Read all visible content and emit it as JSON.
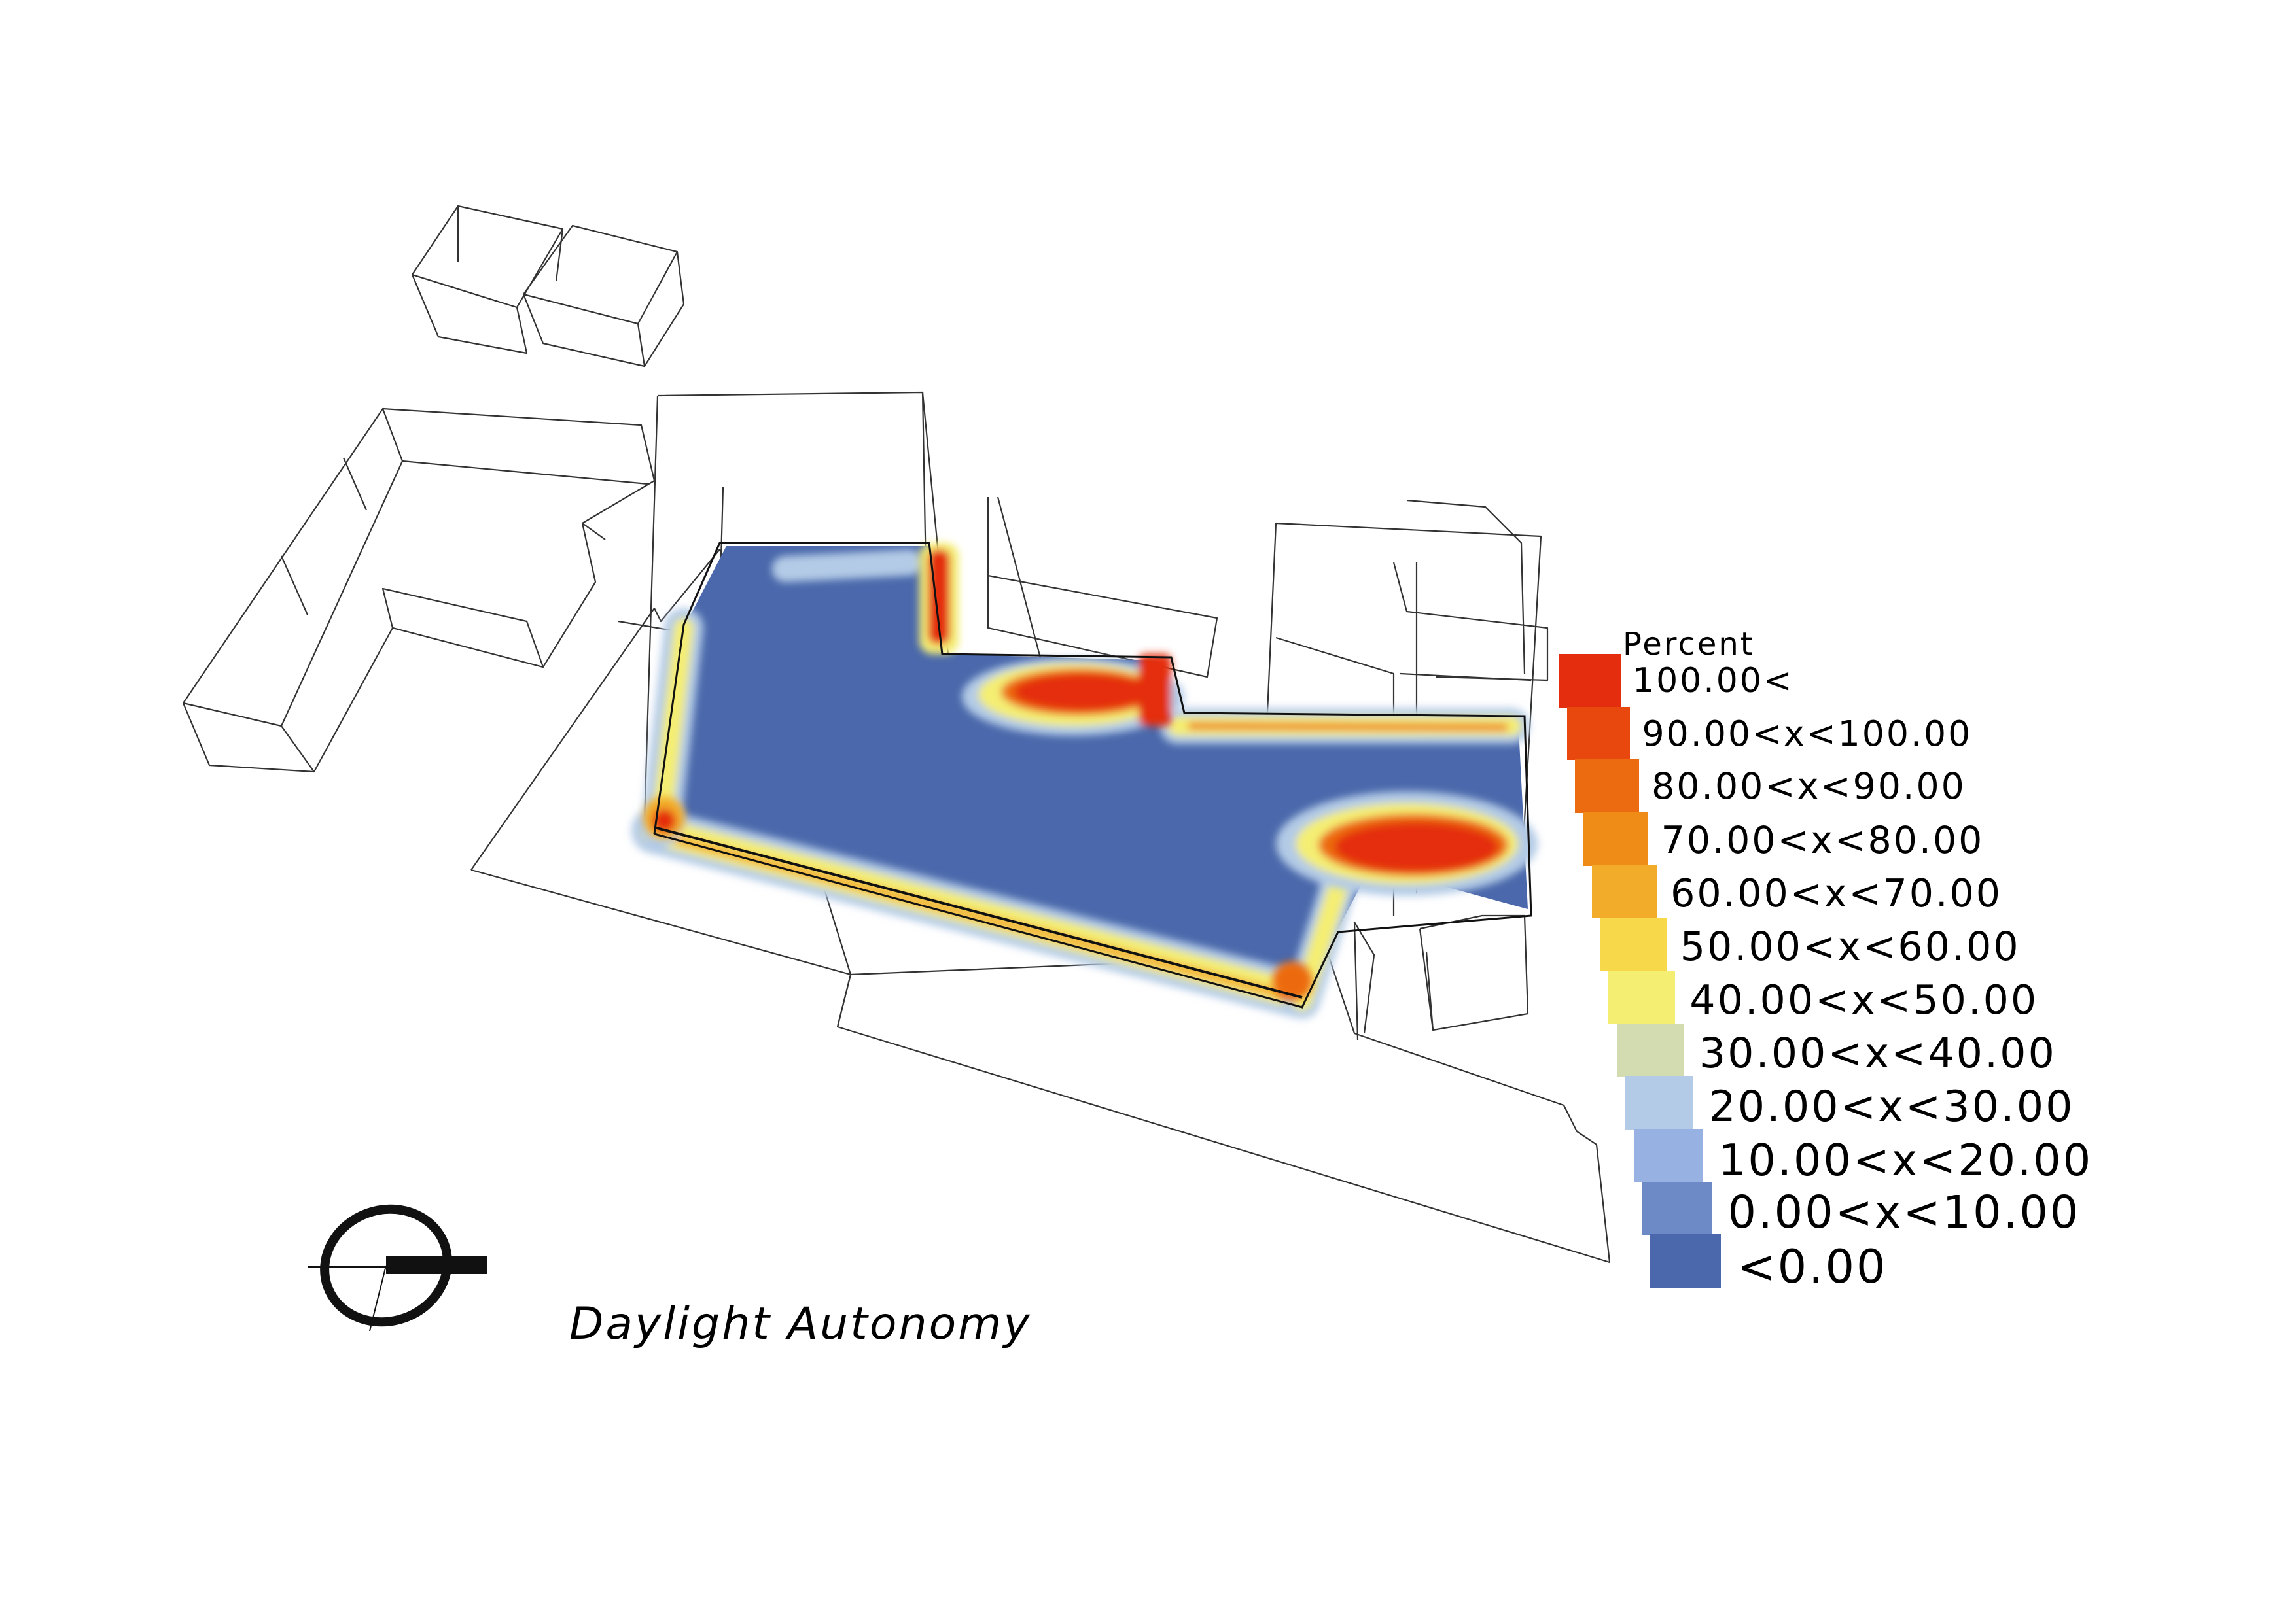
{
  "legend": {
    "title": "Percent",
    "entries": [
      {
        "label": "100.00<",
        "color": "#e42d0f"
      },
      {
        "label": "90.00<x<100.00",
        "color": "#e8480e"
      },
      {
        "label": "80.00<x<90.00",
        "color": "#ec6b10"
      },
      {
        "label": "70.00<x<80.00",
        "color": "#ef8c18"
      },
      {
        "label": "60.00<x<70.00",
        "color": "#f2ac29"
      },
      {
        "label": "50.00<x<60.00",
        "color": "#f6d84a"
      },
      {
        "label": "40.00<x<50.00",
        "color": "#f4ee73"
      },
      {
        "label": "30.00<x<40.00",
        "color": "#d3dcb0"
      },
      {
        "label": "20.00<x<30.00",
        "color": "#b3cbe6"
      },
      {
        "label": "10.00<x<20.00",
        "color": "#96b1e2"
      },
      {
        "label": "0.00<x<10.00",
        "color": "#6d89c6"
      },
      {
        "label": "<0.00",
        "color": "#4a68ab"
      }
    ]
  },
  "caption": "Daylight Autonomy",
  "icons": {
    "north_arrow": "north-arrow-icon"
  }
}
